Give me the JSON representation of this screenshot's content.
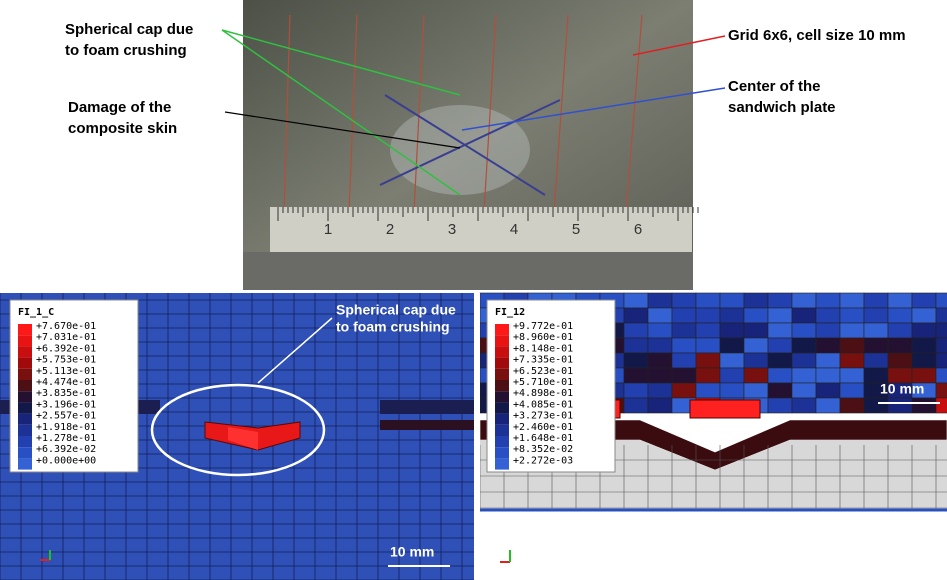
{
  "photo": {
    "annotations": {
      "cap": [
        "Spherical cap due",
        "to foam crushing"
      ],
      "damage": [
        "Damage of the",
        "composite skin"
      ],
      "grid": "Grid 6x6, cell size 10 mm",
      "center": [
        "Center of the",
        "sandwich plate"
      ]
    },
    "ruler_labels": [
      "1",
      "2",
      "3",
      "4",
      "5",
      "6"
    ]
  },
  "left_panel": {
    "legend_title": "FI_1_C",
    "legend_values": [
      "+7.670e-01",
      "+7.031e-01",
      "+6.392e-01",
      "+5.753e-01",
      "+5.113e-01",
      "+4.474e-01",
      "+3.835e-01",
      "+3.196e-01",
      "+2.557e-01",
      "+1.918e-01",
      "+1.278e-01",
      "+6.392e-02",
      "+0.000e+00"
    ],
    "annotation": [
      "Spherical cap due",
      "to foam crushing"
    ],
    "scale": "10 mm"
  },
  "right_panel": {
    "legend_title": "FI_12",
    "legend_values": [
      "+9.772e-01",
      "+8.960e-01",
      "+8.148e-01",
      "+7.335e-01",
      "+6.523e-01",
      "+5.710e-01",
      "+4.898e-01",
      "+4.085e-01",
      "+3.273e-01",
      "+2.460e-01",
      "+1.648e-01",
      "+8.352e-02",
      "+2.272e-03"
    ],
    "scale": "10 mm"
  }
}
